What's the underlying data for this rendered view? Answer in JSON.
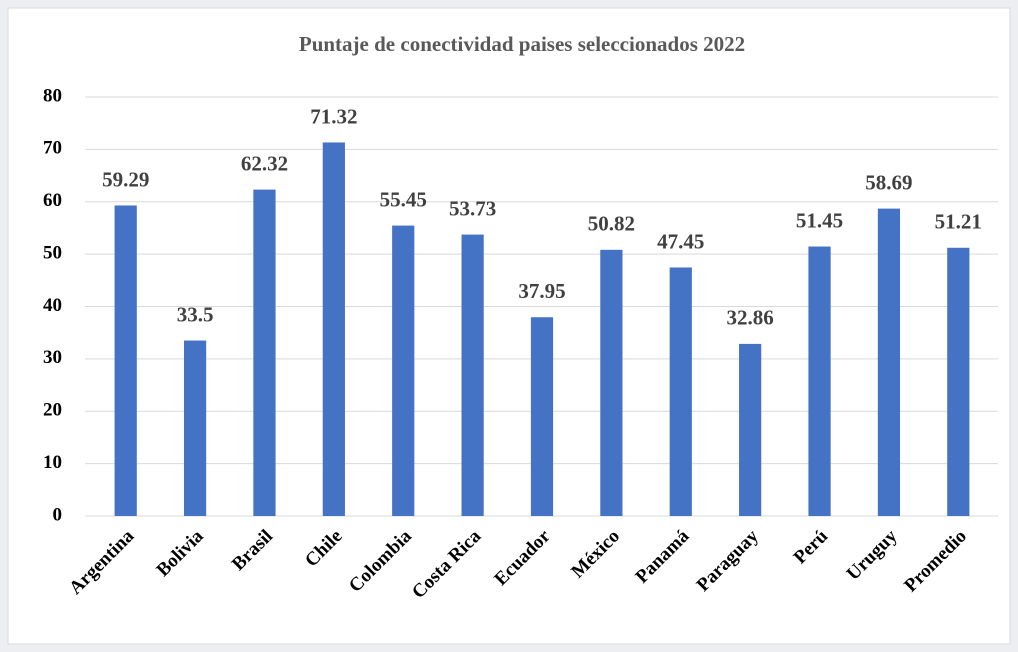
{
  "chart_data": {
    "type": "bar",
    "title": "Puntaje de conectividad paises seleccionados 2022",
    "categories": [
      "Argentina",
      "Bolivia",
      "Brasil",
      "Chile",
      "Colombia",
      "Costa Rica",
      "Ecuador",
      "México",
      "Panamá",
      "Paraguay",
      "Perú",
      "Uruguy",
      "Promedio"
    ],
    "values": [
      59.29,
      33.5,
      62.32,
      71.32,
      55.45,
      53.73,
      37.95,
      50.82,
      47.45,
      32.86,
      51.45,
      58.69,
      51.21
    ],
    "color": "#4472c4",
    "ylim": [
      0,
      80
    ],
    "yticks": [
      0,
      10,
      20,
      30,
      40,
      50,
      60,
      70,
      80
    ],
    "grid": true
  }
}
